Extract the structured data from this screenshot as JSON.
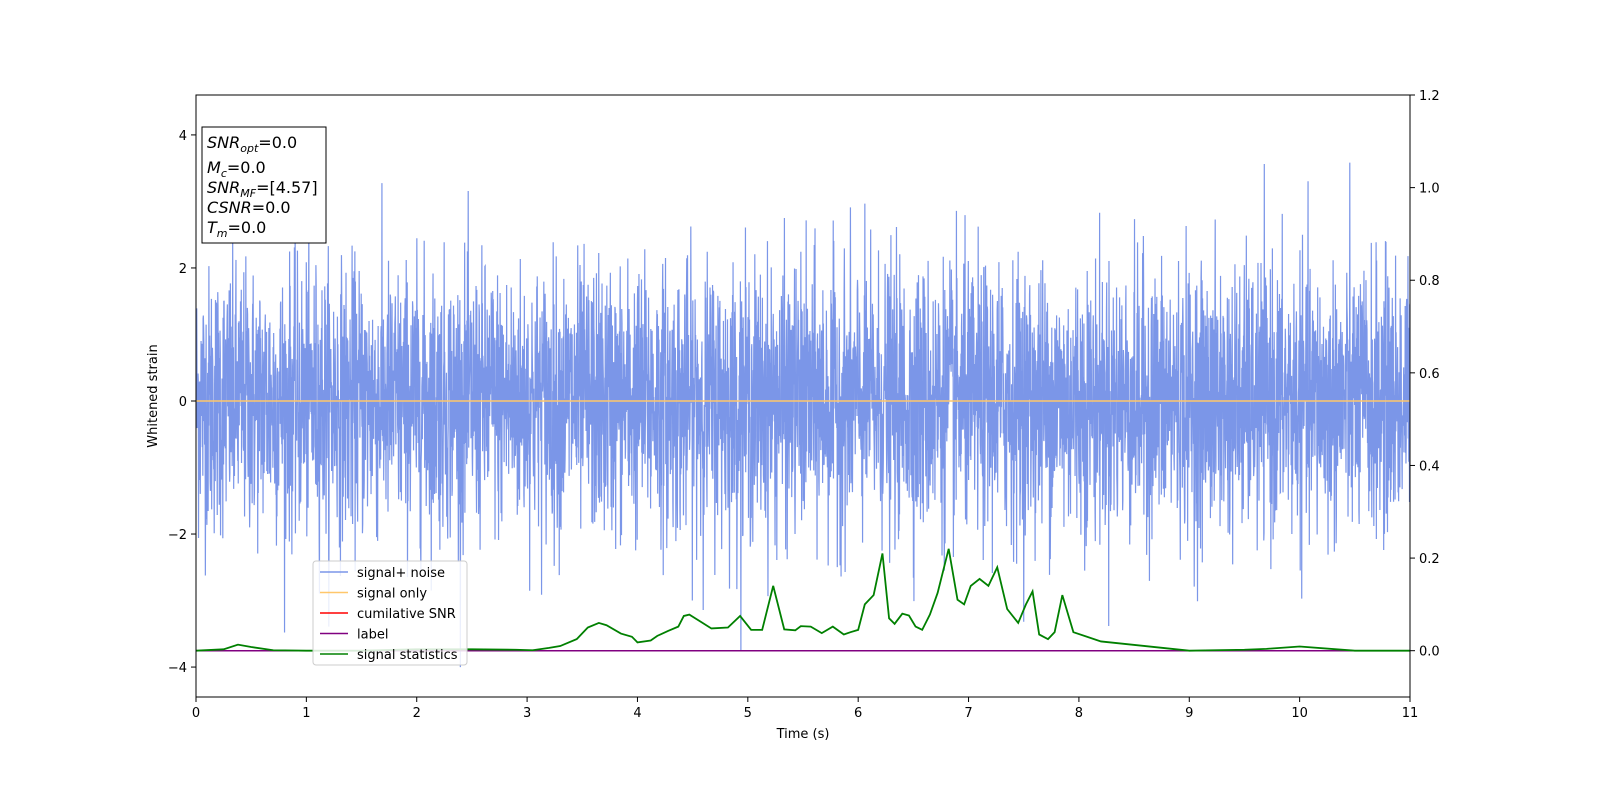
{
  "chart_data": {
    "type": "line",
    "xlabel": "Time (s)",
    "ylabel": "Whitened strain",
    "xlim": [
      0,
      11
    ],
    "ylim_left": [
      -4.45,
      4.6
    ],
    "ylim_right": [
      -0.1,
      1.2
    ],
    "x_ticks": [
      0,
      1,
      2,
      3,
      4,
      5,
      6,
      7,
      8,
      9,
      10,
      11
    ],
    "y_ticks_left": [
      -4,
      -2,
      0,
      2,
      4
    ],
    "y_ticks_right": [
      "0.0",
      "0.2",
      "0.4",
      "0.6",
      "0.8",
      "1.0",
      "1.2"
    ],
    "grid": false,
    "legend_position": "lower-left",
    "info_box": {
      "lines": [
        {
          "name": "SNR",
          "sub": "opt",
          "value": "=0.0"
        },
        {
          "name": "M",
          "sub": "c",
          "value": "=0.0"
        },
        {
          "name": "SNR",
          "sub": "MF",
          "value": "=[4.57]"
        },
        {
          "name": "CSNR",
          "sub": "",
          "value": "=0.0"
        },
        {
          "name": "T",
          "sub": "m",
          "value": "=0.0"
        }
      ]
    },
    "series": [
      {
        "name": "signal+ noise",
        "color": "#7b96e8",
        "axis": "left",
        "style": "noise",
        "amplitude_std": 1.0,
        "range": [
          -4.0,
          4.1
        ]
      },
      {
        "name": "signal only",
        "color": "#ffc76b",
        "axis": "left",
        "x": [
          0,
          11
        ],
        "y": [
          0,
          0
        ]
      },
      {
        "name": "cumilative SNR",
        "color": "#ff0000",
        "axis": "right",
        "x": [],
        "y": []
      },
      {
        "name": "label",
        "color": "#800080",
        "axis": "right",
        "x": [
          0,
          11
        ],
        "y": [
          0,
          0
        ]
      },
      {
        "name": "signal statistics",
        "color": "#008000",
        "axis": "right",
        "x": [
          0,
          0.25,
          0.38,
          0.5,
          0.7,
          1.0,
          1.5,
          2.0,
          2.5,
          2.9,
          3.05,
          3.2,
          3.3,
          3.45,
          3.55,
          3.65,
          3.72,
          3.85,
          3.95,
          4.0,
          4.12,
          4.18,
          4.28,
          4.37,
          4.42,
          4.47,
          4.57,
          4.67,
          4.82,
          4.93,
          5.03,
          5.13,
          5.23,
          5.33,
          5.43,
          5.48,
          5.57,
          5.67,
          5.77,
          5.87,
          5.93,
          6.0,
          6.06,
          6.14,
          6.22,
          6.28,
          6.33,
          6.4,
          6.46,
          6.52,
          6.58,
          6.65,
          6.72,
          6.82,
          6.9,
          6.96,
          7.02,
          7.1,
          7.18,
          7.26,
          7.35,
          7.45,
          7.52,
          7.58,
          7.64,
          7.72,
          7.78,
          7.85,
          7.95,
          8.2,
          8.6,
          9.0,
          9.5,
          9.7,
          10.0,
          10.5,
          11.0
        ],
        "y": [
          0.0,
          0.003,
          0.013,
          0.008,
          0.001,
          0.0,
          0.0,
          0.003,
          0.003,
          0.002,
          0.001,
          0.006,
          0.01,
          0.025,
          0.05,
          0.06,
          0.055,
          0.037,
          0.03,
          0.018,
          0.022,
          0.032,
          0.043,
          0.052,
          0.075,
          0.078,
          0.063,
          0.048,
          0.05,
          0.075,
          0.045,
          0.045,
          0.14,
          0.046,
          0.044,
          0.053,
          0.052,
          0.038,
          0.052,
          0.035,
          0.04,
          0.045,
          0.1,
          0.12,
          0.21,
          0.07,
          0.058,
          0.08,
          0.076,
          0.052,
          0.045,
          0.078,
          0.125,
          0.22,
          0.11,
          0.1,
          0.14,
          0.155,
          0.14,
          0.18,
          0.09,
          0.06,
          0.1,
          0.128,
          0.035,
          0.025,
          0.04,
          0.12,
          0.04,
          0.02,
          0.01,
          0.0,
          0.002,
          0.004,
          0.009,
          0.0,
          0.0
        ]
      }
    ]
  }
}
